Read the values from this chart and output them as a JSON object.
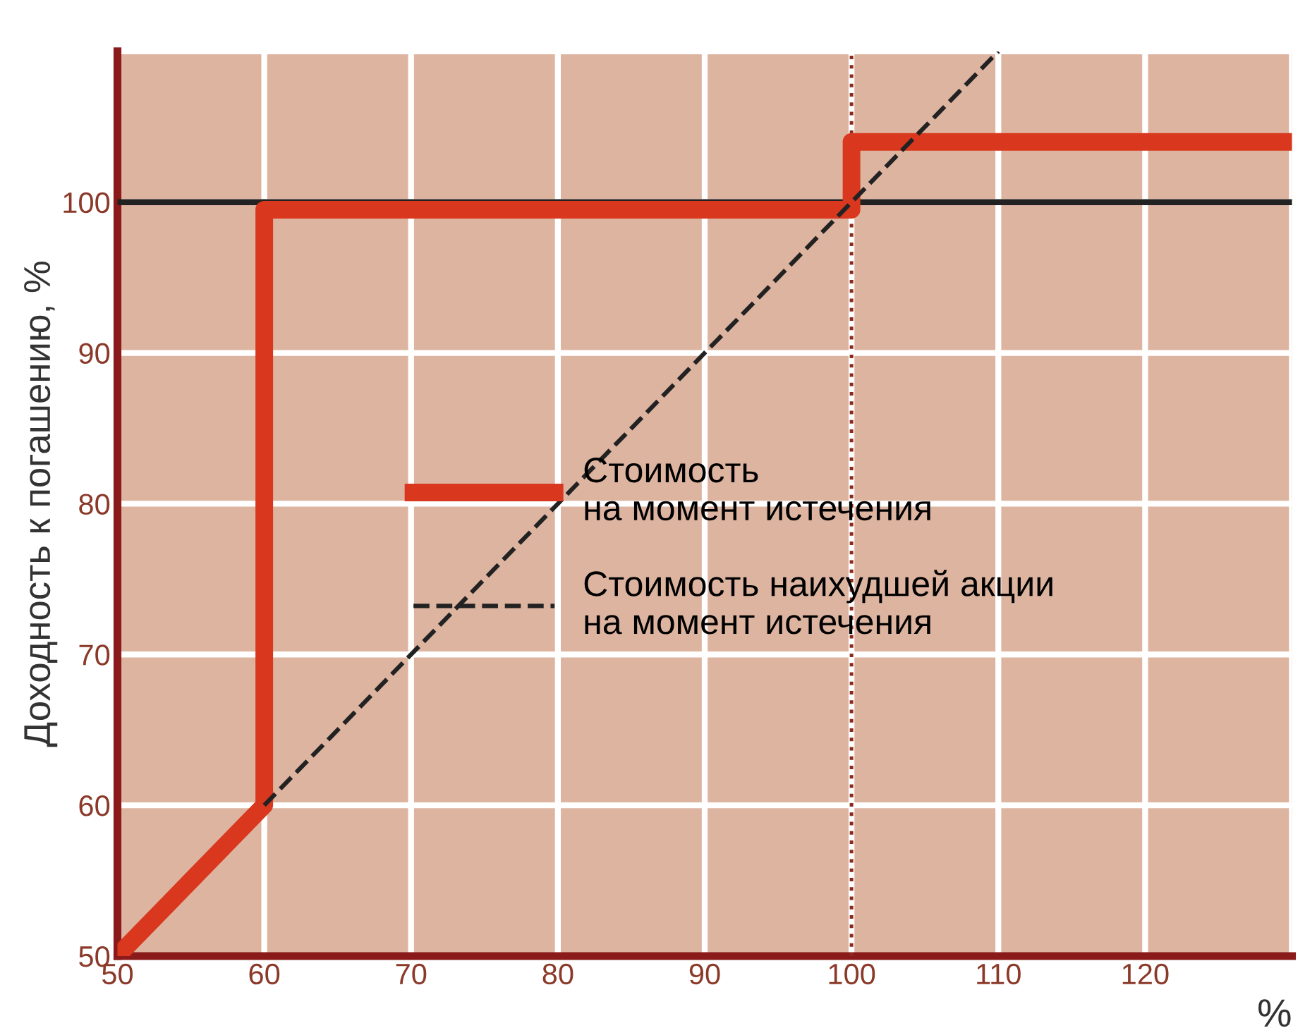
{
  "chart_data": {
    "type": "line",
    "xlabel": "%",
    "ylabel": "Доходность к погашению, %",
    "xlim": [
      50,
      130
    ],
    "ylim": [
      50,
      110
    ],
    "xticks": [
      50,
      60,
      70,
      80,
      90,
      100,
      110,
      120,
      {
        "value": 130,
        "label": null
      }
    ],
    "yticks": [
      50,
      60,
      70,
      80,
      90,
      100,
      {
        "value": 110,
        "label": null
      }
    ],
    "grid": true,
    "legend": "center",
    "marker": "none",
    "ref_lines": [
      {
        "axis": "y",
        "value": 100,
        "label": null,
        "color": "#222222",
        "line_style": "solid"
      },
      {
        "axis": "x",
        "value": 100,
        "label": null,
        "color": "#8b2a1a",
        "line_style": "dotted"
      }
    ],
    "series": [
      {
        "name": "Стоимость\nна момент истечения",
        "color": "#d9381e",
        "line_style": "solid",
        "x": [
          50,
          60,
          60,
          100,
          100,
          130
        ],
        "values": [
          50,
          60,
          99.5,
          99.5,
          104,
          104
        ]
      },
      {
        "name": "Стоимость наихудшей акции\nна момент истечения",
        "color": "#222222",
        "line_style": "dashed",
        "x": [
          60,
          110
        ],
        "values": [
          60,
          110
        ]
      }
    ]
  }
}
